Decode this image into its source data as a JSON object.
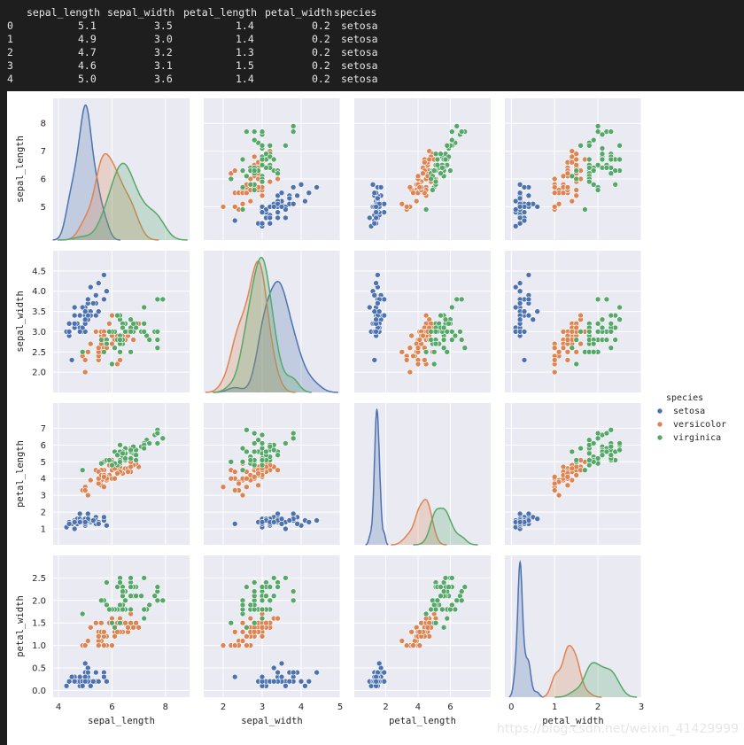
{
  "dataframe": {
    "columns": [
      "sepal_length",
      "sepal_width",
      "petal_length",
      "petal_width",
      "species"
    ],
    "rows": [
      {
        "index": "0",
        "values": [
          "5.1",
          "3.5",
          "1.4",
          "0.2",
          "setosa"
        ]
      },
      {
        "index": "1",
        "values": [
          "4.9",
          "3.0",
          "1.4",
          "0.2",
          "setosa"
        ]
      },
      {
        "index": "2",
        "values": [
          "4.7",
          "3.2",
          "1.3",
          "0.2",
          "setosa"
        ]
      },
      {
        "index": "3",
        "values": [
          "4.6",
          "3.1",
          "1.5",
          "0.2",
          "setosa"
        ]
      },
      {
        "index": "4",
        "values": [
          "5.0",
          "3.6",
          "1.4",
          "0.2",
          "setosa"
        ]
      }
    ]
  },
  "watermark": "https://blog.csdn.net/weixin_41429999",
  "chart_data": {
    "type": "scatter",
    "subtype": "pairplot",
    "variables": [
      "sepal_length",
      "sepal_width",
      "petal_length",
      "petal_width"
    ],
    "hue": "species",
    "legend": {
      "title": "species",
      "placement": "right",
      "entries": [
        {
          "name": "setosa",
          "color": "#4c72b0"
        },
        {
          "name": "versicolor",
          "color": "#dd8452"
        },
        {
          "name": "virginica",
          "color": "#55a868"
        }
      ]
    },
    "diagonal": "kde",
    "grid": true,
    "axes": {
      "sepal_length": {
        "range": [
          3.8,
          8.9
        ],
        "ticks": [
          4,
          6,
          8
        ],
        "ticks_y": [
          5,
          6,
          7,
          8
        ]
      },
      "sepal_width": {
        "range": [
          1.5,
          5.0
        ],
        "ticks": [
          2,
          3,
          4,
          5
        ],
        "ticks_y": [
          2.0,
          2.5,
          3.0,
          3.5,
          4.0,
          4.5
        ]
      },
      "petal_length": {
        "range": [
          0.05,
          8.5
        ],
        "ticks": [
          2,
          4,
          6
        ],
        "ticks_y": [
          1,
          2,
          3,
          4,
          5,
          6,
          7
        ]
      },
      "petal_width": {
        "range": [
          -0.15,
          3.0
        ],
        "ticks": [
          0,
          1,
          2,
          3
        ],
        "ticks_y": [
          0.0,
          0.5,
          1.0,
          1.5,
          2.0,
          2.5
        ]
      }
    },
    "series": [
      {
        "name": "setosa",
        "points": [
          [
            5.1,
            3.5,
            1.4,
            0.2
          ],
          [
            4.9,
            3.0,
            1.4,
            0.2
          ],
          [
            4.7,
            3.2,
            1.3,
            0.2
          ],
          [
            4.6,
            3.1,
            1.5,
            0.2
          ],
          [
            5.0,
            3.6,
            1.4,
            0.2
          ],
          [
            5.4,
            3.9,
            1.7,
            0.4
          ],
          [
            4.6,
            3.4,
            1.4,
            0.3
          ],
          [
            5.0,
            3.4,
            1.5,
            0.2
          ],
          [
            4.4,
            2.9,
            1.4,
            0.2
          ],
          [
            4.9,
            3.1,
            1.5,
            0.1
          ],
          [
            5.4,
            3.7,
            1.5,
            0.2
          ],
          [
            4.8,
            3.4,
            1.6,
            0.2
          ],
          [
            4.8,
            3.0,
            1.4,
            0.1
          ],
          [
            4.3,
            3.0,
            1.1,
            0.1
          ],
          [
            5.8,
            4.0,
            1.2,
            0.2
          ],
          [
            5.7,
            4.4,
            1.5,
            0.4
          ],
          [
            5.4,
            3.9,
            1.3,
            0.4
          ],
          [
            5.1,
            3.5,
            1.4,
            0.3
          ],
          [
            5.7,
            3.8,
            1.7,
            0.3
          ],
          [
            5.1,
            3.8,
            1.5,
            0.3
          ],
          [
            5.4,
            3.4,
            1.7,
            0.2
          ],
          [
            5.1,
            3.7,
            1.5,
            0.4
          ],
          [
            4.6,
            3.6,
            1.0,
            0.2
          ],
          [
            5.1,
            3.3,
            1.7,
            0.5
          ],
          [
            4.8,
            3.4,
            1.9,
            0.2
          ],
          [
            5.0,
            3.0,
            1.6,
            0.2
          ],
          [
            5.0,
            3.4,
            1.6,
            0.4
          ],
          [
            5.2,
            3.5,
            1.5,
            0.2
          ],
          [
            5.2,
            3.4,
            1.4,
            0.2
          ],
          [
            4.7,
            3.2,
            1.6,
            0.2
          ],
          [
            4.8,
            3.1,
            1.6,
            0.2
          ],
          [
            5.4,
            3.4,
            1.5,
            0.4
          ],
          [
            5.2,
            4.1,
            1.5,
            0.1
          ],
          [
            5.5,
            4.2,
            1.4,
            0.2
          ],
          [
            4.9,
            3.1,
            1.5,
            0.2
          ],
          [
            5.0,
            3.2,
            1.2,
            0.2
          ],
          [
            5.5,
            3.5,
            1.3,
            0.2
          ],
          [
            4.9,
            3.6,
            1.4,
            0.1
          ],
          [
            4.4,
            3.0,
            1.3,
            0.2
          ],
          [
            5.1,
            3.4,
            1.5,
            0.2
          ],
          [
            5.0,
            3.5,
            1.3,
            0.3
          ],
          [
            4.5,
            2.3,
            1.3,
            0.3
          ],
          [
            4.4,
            3.2,
            1.3,
            0.2
          ],
          [
            5.0,
            3.5,
            1.6,
            0.6
          ],
          [
            5.1,
            3.8,
            1.9,
            0.4
          ],
          [
            4.8,
            3.0,
            1.4,
            0.3
          ],
          [
            5.1,
            3.8,
            1.6,
            0.2
          ],
          [
            4.6,
            3.2,
            1.4,
            0.2
          ],
          [
            5.3,
            3.7,
            1.5,
            0.2
          ],
          [
            5.0,
            3.3,
            1.4,
            0.2
          ]
        ]
      },
      {
        "name": "versicolor",
        "points": [
          [
            7.0,
            3.2,
            4.7,
            1.4
          ],
          [
            6.4,
            3.2,
            4.5,
            1.5
          ],
          [
            6.9,
            3.1,
            4.9,
            1.5
          ],
          [
            5.5,
            2.3,
            4.0,
            1.3
          ],
          [
            6.5,
            2.8,
            4.6,
            1.5
          ],
          [
            5.7,
            2.8,
            4.5,
            1.3
          ],
          [
            6.3,
            3.3,
            4.7,
            1.6
          ],
          [
            4.9,
            2.4,
            3.3,
            1.0
          ],
          [
            6.6,
            2.9,
            4.6,
            1.3
          ],
          [
            5.2,
            2.7,
            3.9,
            1.4
          ],
          [
            5.0,
            2.0,
            3.5,
            1.0
          ],
          [
            5.9,
            3.0,
            4.2,
            1.5
          ],
          [
            6.0,
            2.2,
            4.0,
            1.0
          ],
          [
            6.1,
            2.9,
            4.7,
            1.4
          ],
          [
            5.6,
            2.9,
            3.6,
            1.3
          ],
          [
            6.7,
            3.1,
            4.4,
            1.4
          ],
          [
            5.6,
            3.0,
            4.5,
            1.5
          ],
          [
            5.8,
            2.7,
            4.1,
            1.0
          ],
          [
            6.2,
            2.2,
            4.5,
            1.5
          ],
          [
            5.6,
            2.5,
            3.9,
            1.1
          ],
          [
            5.9,
            3.2,
            4.8,
            1.8
          ],
          [
            6.1,
            2.8,
            4.0,
            1.3
          ],
          [
            6.3,
            2.5,
            4.9,
            1.5
          ],
          [
            6.1,
            2.8,
            4.7,
            1.2
          ],
          [
            6.4,
            2.9,
            4.3,
            1.3
          ],
          [
            6.6,
            3.0,
            4.4,
            1.4
          ],
          [
            6.8,
            2.8,
            4.8,
            1.4
          ],
          [
            6.7,
            3.0,
            5.0,
            1.7
          ],
          [
            6.0,
            2.9,
            4.5,
            1.5
          ],
          [
            5.7,
            2.6,
            3.5,
            1.0
          ],
          [
            5.5,
            2.4,
            3.8,
            1.1
          ],
          [
            5.5,
            2.4,
            3.7,
            1.0
          ],
          [
            5.8,
            2.7,
            3.9,
            1.2
          ],
          [
            6.0,
            2.7,
            5.1,
            1.6
          ],
          [
            5.4,
            3.0,
            4.5,
            1.5
          ],
          [
            6.0,
            3.4,
            4.5,
            1.6
          ],
          [
            6.7,
            3.1,
            4.7,
            1.5
          ],
          [
            6.3,
            2.3,
            4.4,
            1.3
          ],
          [
            5.6,
            3.0,
            4.1,
            1.3
          ],
          [
            5.5,
            2.5,
            4.0,
            1.3
          ],
          [
            5.5,
            2.6,
            4.4,
            1.2
          ],
          [
            6.1,
            3.0,
            4.6,
            1.4
          ],
          [
            5.8,
            2.6,
            4.0,
            1.2
          ],
          [
            5.0,
            2.3,
            3.3,
            1.0
          ],
          [
            5.6,
            2.7,
            4.2,
            1.3
          ],
          [
            5.7,
            3.0,
            4.2,
            1.2
          ],
          [
            5.7,
            2.9,
            4.2,
            1.3
          ],
          [
            6.2,
            2.9,
            4.3,
            1.3
          ],
          [
            5.1,
            2.5,
            3.0,
            1.1
          ],
          [
            5.7,
            2.8,
            4.1,
            1.3
          ]
        ]
      },
      {
        "name": "virginica",
        "points": [
          [
            6.3,
            3.3,
            6.0,
            2.5
          ],
          [
            5.8,
            2.7,
            5.1,
            1.9
          ],
          [
            7.1,
            3.0,
            5.9,
            2.1
          ],
          [
            6.3,
            2.9,
            5.6,
            1.8
          ],
          [
            6.5,
            3.0,
            5.8,
            2.2
          ],
          [
            7.6,
            3.0,
            6.6,
            2.1
          ],
          [
            4.9,
            2.5,
            4.5,
            1.7
          ],
          [
            7.3,
            2.9,
            6.3,
            1.8
          ],
          [
            6.7,
            2.5,
            5.8,
            1.8
          ],
          [
            7.2,
            3.6,
            6.1,
            2.5
          ],
          [
            6.5,
            3.2,
            5.1,
            2.0
          ],
          [
            6.4,
            2.7,
            5.3,
            1.9
          ],
          [
            6.8,
            3.0,
            5.5,
            2.1
          ],
          [
            5.7,
            2.5,
            5.0,
            2.0
          ],
          [
            5.8,
            2.8,
            5.1,
            2.4
          ],
          [
            6.4,
            3.2,
            5.3,
            2.3
          ],
          [
            6.5,
            3.0,
            5.5,
            1.8
          ],
          [
            7.7,
            3.8,
            6.7,
            2.2
          ],
          [
            7.7,
            2.6,
            6.9,
            2.3
          ],
          [
            6.0,
            2.2,
            5.0,
            1.5
          ],
          [
            6.9,
            3.2,
            5.7,
            2.3
          ],
          [
            5.6,
            2.8,
            4.9,
            2.0
          ],
          [
            7.7,
            2.8,
            6.7,
            2.0
          ],
          [
            6.3,
            2.7,
            4.9,
            1.8
          ],
          [
            6.7,
            3.3,
            5.7,
            2.1
          ],
          [
            7.2,
            3.2,
            6.0,
            1.8
          ],
          [
            6.2,
            2.8,
            4.8,
            1.8
          ],
          [
            6.1,
            3.0,
            4.9,
            1.8
          ],
          [
            6.4,
            2.8,
            5.6,
            2.1
          ],
          [
            7.2,
            3.0,
            5.8,
            1.6
          ],
          [
            7.4,
            2.8,
            6.1,
            1.9
          ],
          [
            7.9,
            3.8,
            6.4,
            2.0
          ],
          [
            6.4,
            2.8,
            5.6,
            2.2
          ],
          [
            6.3,
            2.8,
            5.1,
            1.5
          ],
          [
            6.1,
            2.6,
            5.6,
            1.4
          ],
          [
            7.7,
            3.0,
            6.1,
            2.3
          ],
          [
            6.3,
            3.4,
            5.6,
            2.4
          ],
          [
            6.4,
            3.1,
            5.5,
            1.8
          ],
          [
            6.0,
            3.0,
            4.8,
            1.8
          ],
          [
            6.9,
            3.1,
            5.4,
            2.1
          ],
          [
            6.7,
            3.1,
            5.6,
            2.4
          ],
          [
            6.9,
            3.1,
            5.1,
            2.3
          ],
          [
            5.8,
            2.7,
            5.1,
            1.9
          ],
          [
            6.8,
            3.2,
            5.9,
            2.3
          ],
          [
            6.7,
            3.3,
            5.7,
            2.5
          ],
          [
            6.7,
            3.0,
            5.2,
            2.3
          ],
          [
            6.3,
            2.5,
            5.0,
            1.9
          ],
          [
            6.5,
            3.0,
            5.2,
            2.0
          ],
          [
            6.2,
            3.4,
            5.4,
            2.3
          ],
          [
            5.9,
            3.0,
            5.1,
            1.8
          ]
        ]
      }
    ]
  }
}
